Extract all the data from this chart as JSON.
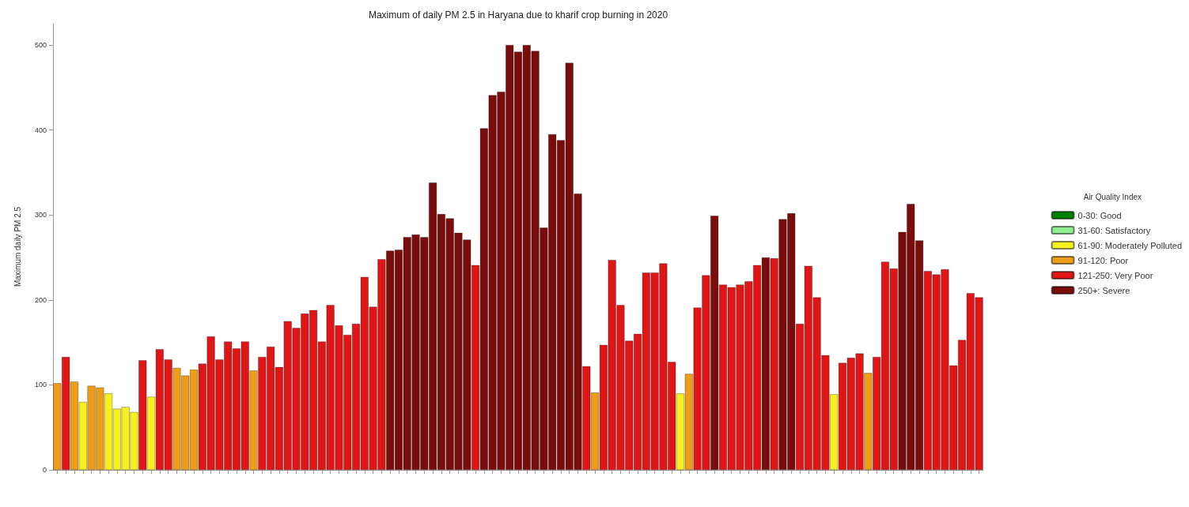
{
  "chart_data": {
    "type": "bar",
    "stacked": true,
    "title": "Maximum of daily PM 2.5 in Haryana due to kharif crop burning in 2020",
    "ylabel": "Maximum daily PM 2.5",
    "legend_title": "Air Quality Index",
    "legend": "right",
    "ylim": [
      0,
      525
    ],
    "yticks": [
      0,
      100,
      200,
      300,
      400,
      500
    ],
    "categories": [
      null,
      null,
      null,
      null,
      null,
      null,
      null,
      null,
      null,
      null,
      null,
      null,
      null,
      null,
      null,
      null,
      null,
      null,
      null,
      null,
      null,
      null,
      null,
      null,
      null,
      null,
      null,
      null,
      null,
      null,
      null,
      null,
      null,
      null,
      null,
      null,
      null,
      null,
      null,
      null,
      null,
      null,
      null,
      null,
      null,
      null,
      null,
      null,
      null,
      null,
      null,
      null,
      null,
      null,
      null,
      null,
      null,
      null,
      null,
      null,
      null,
      null,
      null,
      null,
      null,
      null,
      null,
      null,
      null,
      null,
      null,
      null,
      null,
      null,
      null,
      null,
      null,
      null,
      null,
      null,
      null,
      null,
      null,
      null,
      null,
      null,
      null,
      null,
      null,
      null,
      null,
      null,
      null,
      null,
      null,
      null,
      null,
      null,
      null,
      null,
      null,
      null,
      null,
      null,
      null,
      null,
      null,
      null,
      null
    ],
    "series": [
      {
        "name": "0-30: Good",
        "color": "#008000",
        "values": [
          null,
          null,
          null,
          null,
          null,
          null,
          null,
          null,
          null,
          null,
          null,
          null,
          null,
          null,
          null,
          null,
          null,
          null,
          null,
          null,
          null,
          null,
          null,
          null,
          null,
          null,
          null,
          null,
          null,
          null,
          null,
          null,
          null,
          null,
          null,
          null,
          null,
          null,
          null,
          null,
          null,
          null,
          null,
          null,
          null,
          null,
          null,
          null,
          null,
          null,
          null,
          null,
          null,
          null,
          null,
          null,
          null,
          null,
          null,
          null,
          null,
          null,
          null,
          null,
          null,
          null,
          null,
          null,
          null,
          null,
          null,
          null,
          null,
          null,
          null,
          null,
          null,
          null,
          null,
          null,
          null,
          null,
          null,
          null,
          null,
          null,
          null,
          null,
          null,
          null,
          null,
          null,
          null,
          null,
          null,
          null,
          null,
          null,
          null,
          null,
          null,
          null,
          null,
          null,
          null,
          null,
          null,
          null,
          null
        ]
      },
      {
        "name": "31-60: Satisfactory",
        "color": "#90ee90",
        "values": [
          null,
          null,
          null,
          null,
          null,
          null,
          null,
          null,
          null,
          null,
          null,
          null,
          null,
          null,
          null,
          null,
          null,
          null,
          null,
          null,
          null,
          null,
          null,
          null,
          null,
          null,
          null,
          null,
          null,
          null,
          null,
          null,
          null,
          null,
          null,
          null,
          null,
          null,
          null,
          null,
          null,
          null,
          null,
          null,
          null,
          null,
          null,
          null,
          null,
          null,
          null,
          null,
          null,
          null,
          null,
          null,
          null,
          null,
          null,
          null,
          null,
          null,
          null,
          null,
          null,
          null,
          null,
          null,
          null,
          null,
          null,
          null,
          null,
          null,
          null,
          null,
          null,
          null,
          null,
          null,
          null,
          null,
          null,
          null,
          null,
          null,
          null,
          null,
          null,
          null,
          null,
          null,
          null,
          null,
          null,
          null,
          null,
          null,
          null,
          null,
          null,
          null,
          null,
          null,
          null,
          null,
          null,
          null,
          null
        ]
      },
      {
        "name": "61-90: Moderately Polluted",
        "color": "#f7f01f",
        "values": [
          null,
          null,
          null,
          80,
          null,
          null,
          90,
          72,
          74,
          68,
          null,
          86,
          null,
          null,
          null,
          null,
          null,
          null,
          null,
          null,
          null,
          null,
          null,
          null,
          null,
          null,
          null,
          null,
          null,
          null,
          null,
          null,
          null,
          null,
          null,
          null,
          null,
          null,
          null,
          null,
          null,
          null,
          null,
          null,
          null,
          null,
          null,
          null,
          null,
          null,
          null,
          null,
          null,
          null,
          null,
          null,
          null,
          null,
          null,
          null,
          null,
          null,
          null,
          null,
          null,
          null,
          null,
          null,
          null,
          null,
          null,
          null,
          null,
          90,
          null,
          null,
          null,
          null,
          null,
          null,
          null,
          null,
          null,
          null,
          null,
          null,
          null,
          null,
          null,
          null,
          null,
          89,
          null,
          null,
          null,
          null,
          null,
          null,
          null,
          null,
          null,
          null,
          null,
          null,
          null,
          null,
          null,
          null,
          null
        ]
      },
      {
        "name": "91-120: Poor",
        "color": "#ed9d18",
        "values": [
          102,
          null,
          104,
          null,
          99,
          97,
          null,
          null,
          null,
          null,
          null,
          null,
          null,
          null,
          120,
          111,
          118,
          null,
          null,
          null,
          null,
          null,
          null,
          117,
          null,
          null,
          null,
          null,
          null,
          null,
          null,
          null,
          null,
          null,
          null,
          null,
          null,
          null,
          null,
          null,
          null,
          null,
          null,
          null,
          null,
          null,
          null,
          null,
          null,
          null,
          null,
          null,
          null,
          null,
          null,
          null,
          null,
          null,
          null,
          null,
          null,
          null,
          null,
          91,
          null,
          null,
          null,
          null,
          null,
          null,
          null,
          null,
          null,
          null,
          113,
          null,
          null,
          null,
          null,
          null,
          null,
          null,
          null,
          null,
          null,
          null,
          null,
          null,
          null,
          null,
          null,
          null,
          null,
          null,
          null,
          114,
          null,
          null,
          null,
          null,
          null,
          null,
          null,
          null,
          null,
          null,
          null,
          null,
          null
        ]
      },
      {
        "name": "121-250: Very Poor",
        "color": "#e01515",
        "values": [
          null,
          133,
          null,
          null,
          null,
          null,
          null,
          null,
          null,
          null,
          129,
          null,
          142,
          130,
          null,
          null,
          null,
          125,
          157,
          130,
          151,
          143,
          151,
          null,
          133,
          145,
          121,
          175,
          167,
          184,
          188,
          151,
          194,
          170,
          159,
          172,
          227,
          192,
          248,
          null,
          null,
          null,
          null,
          null,
          null,
          null,
          null,
          null,
          null,
          241,
          null,
          null,
          null,
          null,
          null,
          null,
          null,
          null,
          null,
          null,
          null,
          null,
          122,
          null,
          147,
          247,
          194,
          152,
          160,
          232,
          232,
          243,
          127,
          null,
          null,
          191,
          229,
          null,
          218,
          215,
          218,
          222,
          241,
          null,
          249,
          null,
          null,
          172,
          240,
          203,
          135,
          null,
          126,
          132,
          137,
          null,
          133,
          245,
          237,
          null,
          null,
          null,
          234,
          230,
          236,
          123,
          153,
          208,
          203
        ]
      },
      {
        "name": "250+: Severe",
        "color": "#7b0c0c",
        "values": [
          null,
          null,
          null,
          null,
          null,
          null,
          null,
          null,
          null,
          null,
          null,
          null,
          null,
          null,
          null,
          null,
          null,
          null,
          null,
          null,
          null,
          null,
          null,
          null,
          null,
          null,
          null,
          null,
          null,
          null,
          null,
          null,
          null,
          null,
          null,
          null,
          null,
          null,
          null,
          258,
          259,
          274,
          277,
          274,
          338,
          301,
          296,
          279,
          271,
          null,
          402,
          441,
          445,
          500,
          492,
          500,
          493,
          285,
          395,
          388,
          479,
          325,
          null,
          null,
          null,
          null,
          null,
          null,
          null,
          null,
          null,
          null,
          null,
          null,
          null,
          null,
          null,
          299,
          null,
          null,
          null,
          null,
          null,
          250,
          null,
          295,
          302,
          null,
          null,
          null,
          null,
          null,
          null,
          null,
          null,
          null,
          null,
          null,
          null,
          280,
          313,
          270,
          null,
          null,
          null,
          null,
          null,
          null,
          null
        ]
      }
    ]
  }
}
